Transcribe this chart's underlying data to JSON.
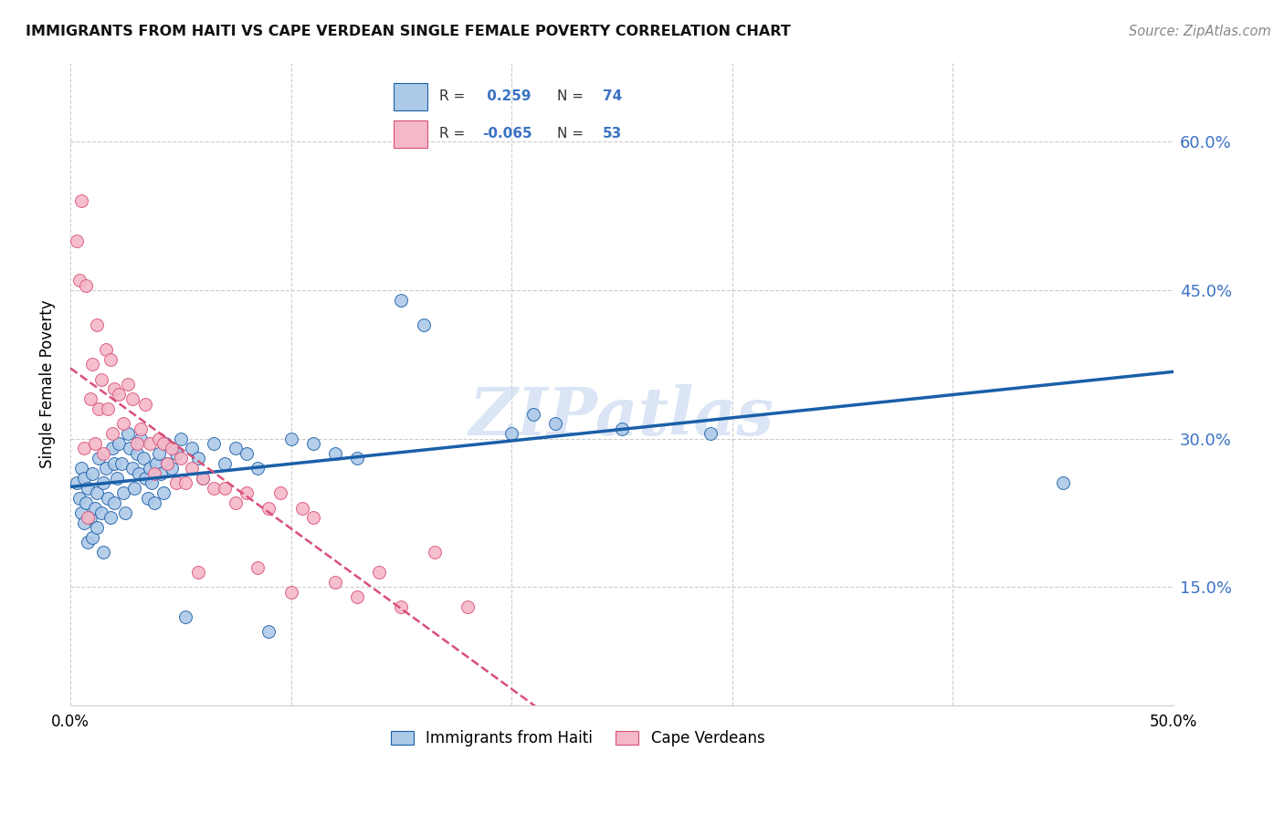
{
  "title": "IMMIGRANTS FROM HAITI VS CAPE VERDEAN SINGLE FEMALE POVERTY CORRELATION CHART",
  "source": "Source: ZipAtlas.com",
  "ylabel": "Single Female Poverty",
  "yticks": [
    0.15,
    0.3,
    0.45,
    0.6
  ],
  "ytick_labels": [
    "15.0%",
    "30.0%",
    "45.0%",
    "60.0%"
  ],
  "xlim": [
    0.0,
    0.5
  ],
  "ylim": [
    0.03,
    0.68
  ],
  "xticks": [
    0.0,
    0.1,
    0.2,
    0.3,
    0.4,
    0.5
  ],
  "xtick_labels_show": [
    "0.0%",
    "",
    "",
    "",
    "",
    "50.0%"
  ],
  "legend_haiti_r": "0.259",
  "legend_haiti_n": "74",
  "legend_cv_r": "-0.065",
  "legend_cv_n": "53",
  "legend_labels": [
    "Immigrants from Haiti",
    "Cape Verdeans"
  ],
  "haiti_color": "#adc9e8",
  "cv_color": "#f5b8c8",
  "haiti_line_color": "#1a5fa8",
  "cv_line_color": "#d94f78",
  "watermark": "ZIPatlas",
  "haiti_points_x": [
    0.003,
    0.004,
    0.005,
    0.005,
    0.006,
    0.006,
    0.007,
    0.008,
    0.008,
    0.009,
    0.01,
    0.01,
    0.011,
    0.012,
    0.012,
    0.013,
    0.014,
    0.015,
    0.015,
    0.016,
    0.017,
    0.018,
    0.019,
    0.02,
    0.02,
    0.021,
    0.022,
    0.023,
    0.024,
    0.025,
    0.026,
    0.027,
    0.028,
    0.029,
    0.03,
    0.031,
    0.032,
    0.033,
    0.034,
    0.035,
    0.036,
    0.037,
    0.038,
    0.039,
    0.04,
    0.041,
    0.042,
    0.043,
    0.044,
    0.046,
    0.048,
    0.05,
    0.052,
    0.055,
    0.058,
    0.06,
    0.065,
    0.07,
    0.075,
    0.08,
    0.085,
    0.09,
    0.1,
    0.11,
    0.12,
    0.13,
    0.15,
    0.16,
    0.2,
    0.21,
    0.22,
    0.25,
    0.29,
    0.45
  ],
  "haiti_points_y": [
    0.255,
    0.24,
    0.27,
    0.225,
    0.26,
    0.215,
    0.235,
    0.25,
    0.195,
    0.22,
    0.265,
    0.2,
    0.23,
    0.245,
    0.21,
    0.28,
    0.225,
    0.255,
    0.185,
    0.27,
    0.24,
    0.22,
    0.29,
    0.275,
    0.235,
    0.26,
    0.295,
    0.275,
    0.245,
    0.225,
    0.305,
    0.29,
    0.27,
    0.25,
    0.285,
    0.265,
    0.3,
    0.28,
    0.26,
    0.24,
    0.27,
    0.255,
    0.235,
    0.275,
    0.285,
    0.265,
    0.245,
    0.295,
    0.275,
    0.27,
    0.285,
    0.3,
    0.12,
    0.29,
    0.28,
    0.26,
    0.295,
    0.275,
    0.29,
    0.285,
    0.27,
    0.105,
    0.3,
    0.295,
    0.285,
    0.28,
    0.44,
    0.415,
    0.305,
    0.325,
    0.315,
    0.31,
    0.305,
    0.255
  ],
  "cv_points_x": [
    0.003,
    0.004,
    0.005,
    0.006,
    0.007,
    0.008,
    0.009,
    0.01,
    0.011,
    0.012,
    0.013,
    0.014,
    0.015,
    0.016,
    0.017,
    0.018,
    0.019,
    0.02,
    0.022,
    0.024,
    0.026,
    0.028,
    0.03,
    0.032,
    0.034,
    0.036,
    0.038,
    0.04,
    0.042,
    0.044,
    0.046,
    0.048,
    0.05,
    0.052,
    0.055,
    0.058,
    0.06,
    0.065,
    0.07,
    0.075,
    0.08,
    0.085,
    0.09,
    0.095,
    0.1,
    0.105,
    0.11,
    0.12,
    0.13,
    0.14,
    0.15,
    0.165,
    0.18
  ],
  "cv_points_y": [
    0.5,
    0.46,
    0.54,
    0.29,
    0.455,
    0.22,
    0.34,
    0.375,
    0.295,
    0.415,
    0.33,
    0.36,
    0.285,
    0.39,
    0.33,
    0.38,
    0.305,
    0.35,
    0.345,
    0.315,
    0.355,
    0.34,
    0.295,
    0.31,
    0.335,
    0.295,
    0.265,
    0.3,
    0.295,
    0.275,
    0.29,
    0.255,
    0.28,
    0.255,
    0.27,
    0.165,
    0.26,
    0.25,
    0.25,
    0.235,
    0.245,
    0.17,
    0.23,
    0.245,
    0.145,
    0.23,
    0.22,
    0.155,
    0.14,
    0.165,
    0.13,
    0.185,
    0.13
  ]
}
